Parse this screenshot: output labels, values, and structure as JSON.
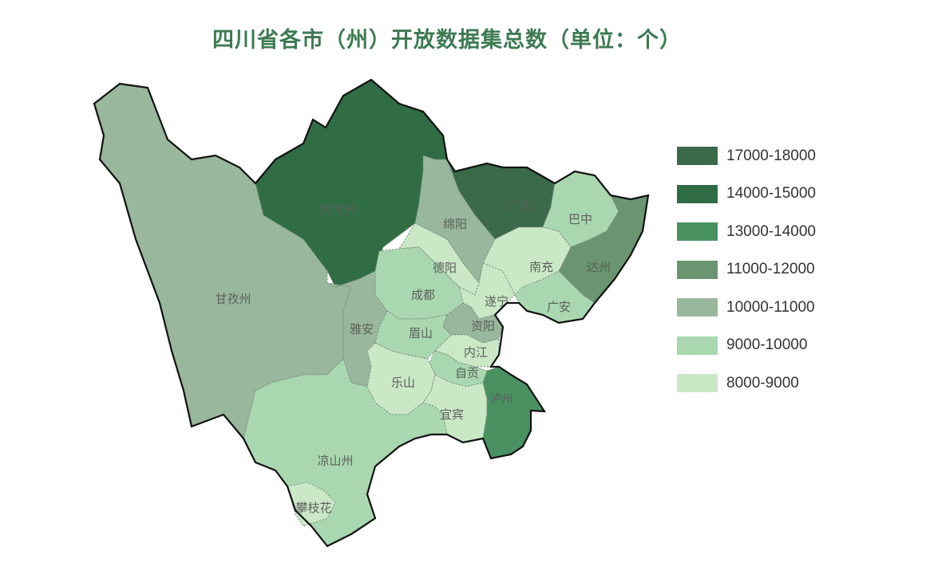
{
  "title": "四川省各市（州）开放数据集总数（单位：个）",
  "legend": [
    {
      "label": "17000-18000",
      "color": "#3b6a4a"
    },
    {
      "label": "14000-15000",
      "color": "#306d45"
    },
    {
      "label": "13000-14000",
      "color": "#4a9162"
    },
    {
      "label": "11000-12000",
      "color": "#6a9570"
    },
    {
      "label": "10000-11000",
      "color": "#98b79c"
    },
    {
      "label": "9000-10000",
      "color": "#a9d8b0"
    },
    {
      "label": "8000-9000",
      "color": "#cae8c6"
    }
  ],
  "regions": [
    {
      "name": "甘孜州",
      "range": "10000-11000"
    },
    {
      "name": "阿坝州",
      "range": "14000-15000"
    },
    {
      "name": "广元",
      "range": "17000-18000"
    },
    {
      "name": "绵阳",
      "range": "10000-11000"
    },
    {
      "name": "巴中",
      "range": "9000-10000"
    },
    {
      "name": "达州",
      "range": "11000-12000"
    },
    {
      "name": "南充",
      "range": "8000-9000"
    },
    {
      "name": "德阳",
      "range": "8000-9000"
    },
    {
      "name": "遂宁",
      "range": "8000-9000"
    },
    {
      "name": "广安",
      "range": "9000-10000"
    },
    {
      "name": "成都",
      "range": "9000-10000"
    },
    {
      "name": "资阳",
      "range": "10000-11000"
    },
    {
      "name": "眉山",
      "range": "9000-10000"
    },
    {
      "name": "内江",
      "range": "8000-9000"
    },
    {
      "name": "自贡",
      "range": "9000-10000"
    },
    {
      "name": "乐山",
      "range": "8000-9000"
    },
    {
      "name": "宜宾",
      "range": "8000-9000"
    },
    {
      "name": "泸州",
      "range": "13000-14000"
    },
    {
      "name": "雅安",
      "range": "10000-11000"
    },
    {
      "name": "凉山州",
      "range": "9000-10000"
    },
    {
      "name": "攀枝花",
      "range": "8000-9000"
    }
  ]
}
